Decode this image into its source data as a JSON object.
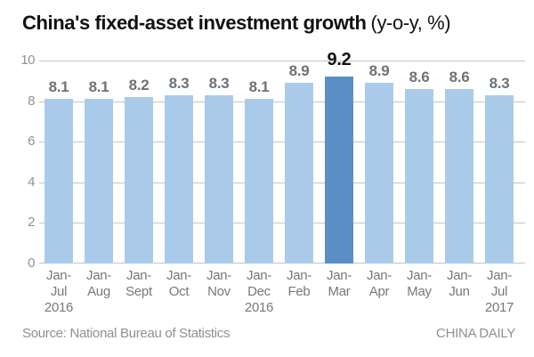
{
  "title": {
    "main": "China's fixed-asset investment growth",
    "unit": "(y-o-y, %)"
  },
  "footer": {
    "source": "Source: National Bureau of Statistics",
    "branding": "CHINA DAILY"
  },
  "chart_data": {
    "type": "bar",
    "title": "China's fixed-asset investment growth (y-o-y, %)",
    "categories": [
      "Jan-Jul 2016",
      "Jan-Aug",
      "Jan-Sept",
      "Jan-Oct",
      "Jan-Nov",
      "Jan-Dec 2016",
      "Jan-Feb",
      "Jan-Mar",
      "Jan-Apr",
      "Jan-May",
      "Jan-Jun",
      "Jan-Jul 2017"
    ],
    "category_lines": [
      [
        "Jan-",
        "Jul",
        "2016"
      ],
      [
        "Jan-",
        "Aug"
      ],
      [
        "Jan-",
        "Sept"
      ],
      [
        "Jan-",
        "Oct"
      ],
      [
        "Jan-",
        "Nov"
      ],
      [
        "Jan-",
        "Dec",
        "2016"
      ],
      [
        "Jan-",
        "Feb"
      ],
      [
        "Jan-",
        "Mar"
      ],
      [
        "Jan-",
        "Apr"
      ],
      [
        "Jan-",
        "May"
      ],
      [
        "Jan-",
        "Jun"
      ],
      [
        "Jan-",
        "Jul",
        "2017"
      ]
    ],
    "values": [
      8.1,
      8.1,
      8.2,
      8.3,
      8.3,
      8.1,
      8.9,
      9.2,
      8.9,
      8.6,
      8.6,
      8.3
    ],
    "value_labels": [
      "8.1",
      "8.1",
      "8.2",
      "8.3",
      "8.3",
      "8.1",
      "8.9",
      "9.2",
      "8.9",
      "8.6",
      "8.6",
      "8.3"
    ],
    "highlight_index": 7,
    "xlabel": "",
    "ylabel": "",
    "ylim": [
      0,
      10
    ],
    "yticks": [
      0,
      2,
      4,
      6,
      8,
      10
    ],
    "grid": true,
    "legend": "none",
    "colors": {
      "bar": "#a9cbe9",
      "bar_highlight": "#5b8ec5",
      "grid": "#c4c4c4",
      "y_tick_text": "#8f9296",
      "x_tick_text": "#75797e",
      "value_label": "#6e7277",
      "value_label_highlight": "#121212",
      "title_text": "#111111",
      "footer_text": "#8c9097"
    }
  }
}
